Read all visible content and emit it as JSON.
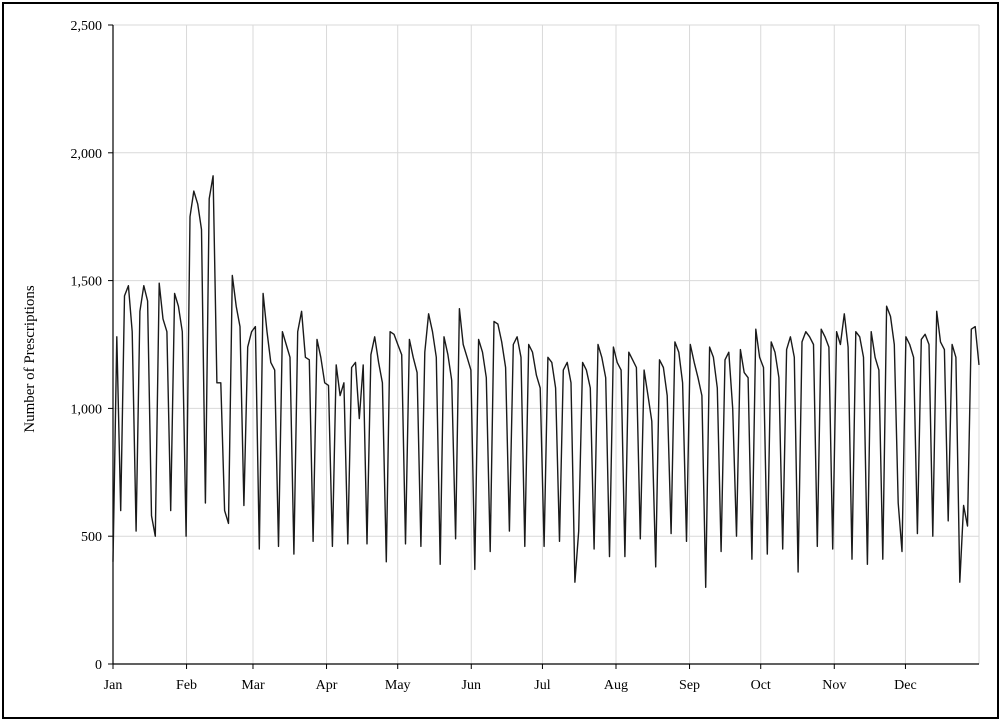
{
  "chart_data": {
    "type": "line",
    "title": "",
    "xlabel": "",
    "ylabel": "Number of Prescriptions",
    "ylim": [
      0,
      2500
    ],
    "yticks": [
      0,
      500,
      1000,
      1500,
      2000,
      2500
    ],
    "ytick_labels": [
      "0",
      "500",
      "1,000",
      "1,500",
      "2,000",
      "2,500"
    ],
    "months": [
      "Jan",
      "Feb",
      "Mar",
      "Apr",
      "May",
      "Jun",
      "Jul",
      "Aug",
      "Sep",
      "Oct",
      "Nov",
      "Dec"
    ],
    "month_start_days": [
      0,
      31,
      59,
      90,
      120,
      151,
      181,
      212,
      243,
      273,
      304,
      334
    ],
    "days_in_year": 365,
    "grid": true,
    "legend": "none",
    "line_color": "#1a1a1a",
    "grid_color": "#d9d9d9",
    "series": [
      {
        "name": "",
        "values": [
          400,
          1280,
          600,
          1440,
          1480,
          1300,
          520,
          1380,
          1480,
          1420,
          580,
          500,
          1490,
          1350,
          1300,
          600,
          1450,
          1400,
          1300,
          500,
          1750,
          1850,
          1800,
          1700,
          630,
          1820,
          1910,
          1100,
          1100,
          600,
          550,
          1520,
          1400,
          1320,
          620,
          1240,
          1300,
          1320,
          450,
          1450,
          1300,
          1180,
          1150,
          460,
          1300,
          1250,
          1200,
          430,
          1300,
          1380,
          1200,
          1190,
          480,
          1270,
          1200,
          1100,
          1090,
          460,
          1170,
          1050,
          1100,
          470,
          1160,
          1180,
          960,
          1170,
          470,
          1210,
          1280,
          1180,
          1100,
          400,
          1300,
          1290,
          1250,
          1210,
          470,
          1270,
          1200,
          1140,
          460,
          1220,
          1370,
          1300,
          1200,
          390,
          1280,
          1210,
          1110,
          490,
          1390,
          1250,
          1200,
          1150,
          370,
          1270,
          1220,
          1120,
          440,
          1340,
          1330,
          1260,
          1160,
          520,
          1250,
          1280,
          1200,
          460,
          1250,
          1220,
          1130,
          1080,
          460,
          1200,
          1180,
          1080,
          480,
          1150,
          1180,
          1100,
          320,
          520,
          1180,
          1150,
          1080,
          450,
          1250,
          1200,
          1120,
          420,
          1240,
          1180,
          1150,
          420,
          1220,
          1190,
          1160,
          490,
          1150,
          1050,
          950,
          380,
          1190,
          1160,
          1050,
          510,
          1260,
          1220,
          1100,
          480,
          1250,
          1180,
          1120,
          1050,
          300,
          1240,
          1200,
          1080,
          440,
          1190,
          1220,
          1000,
          500,
          1230,
          1140,
          1120,
          410,
          1310,
          1200,
          1160,
          430,
          1260,
          1220,
          1120,
          450,
          1230,
          1280,
          1200,
          360,
          1260,
          1300,
          1280,
          1250,
          460,
          1310,
          1280,
          1240,
          450,
          1300,
          1250,
          1370,
          1240,
          410,
          1300,
          1280,
          1200,
          390,
          1300,
          1200,
          1150,
          410,
          1400,
          1360,
          1250,
          630,
          440,
          1280,
          1250,
          1200,
          510,
          1270,
          1290,
          1250,
          500,
          1380,
          1260,
          1230,
          560,
          1250,
          1200,
          320,
          620,
          540,
          1310,
          1320,
          1170
        ]
      }
    ]
  }
}
